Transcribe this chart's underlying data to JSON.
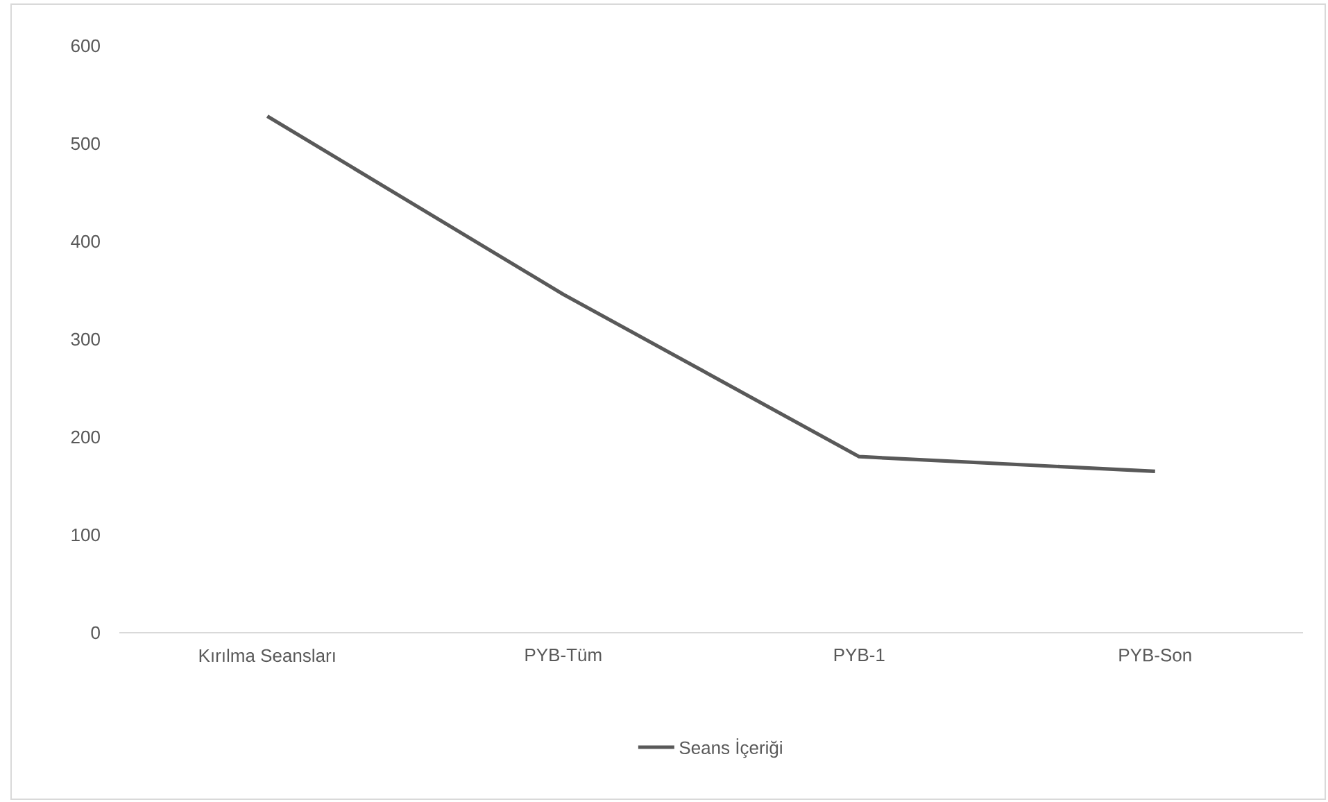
{
  "chart_data": {
    "type": "line",
    "categories": [
      "Kırılma Seansları",
      "PYB-Tüm",
      "PYB-1",
      "PYB-Son"
    ],
    "series": [
      {
        "name": "Seans İçeriği",
        "color": "#595959",
        "values": [
          528,
          346,
          180,
          165
        ]
      }
    ],
    "ylim": [
      0,
      600
    ],
    "yticks": [
      0,
      100,
      200,
      300,
      400,
      500,
      600
    ],
    "legend": "bottom"
  }
}
